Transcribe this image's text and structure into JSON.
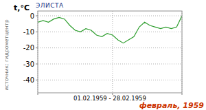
{
  "chart_data": {
    "type": "line",
    "title": "ЭЛИСТА",
    "subtitle": "февраль, 1959",
    "y_label": "t,°C",
    "x_label": "01.02.1959 - 28.02.1959",
    "source": "источник: гидрометцентр",
    "x": [
      1,
      2,
      3,
      4,
      5,
      6,
      7,
      8,
      9,
      10,
      11,
      12,
      13,
      14,
      15,
      16,
      17,
      18,
      19,
      20,
      21,
      22,
      23,
      24,
      25,
      26,
      27,
      28
    ],
    "series": [
      {
        "name": "t,°C",
        "color": "#2e9e2e",
        "values": [
          -4,
          -3,
          -4,
          -2,
          -1,
          -2,
          -6,
          -9,
          -10,
          -8,
          -9,
          -12,
          -13,
          -11,
          -12,
          -15,
          -17,
          -15,
          -13,
          -7,
          -4,
          -6,
          -7,
          -8,
          -7,
          -8,
          -7,
          0
        ]
      }
    ],
    "xlim": [
      1,
      28
    ],
    "xticks": [
      1,
      15,
      28
    ],
    "ylim": [
      -48,
      3
    ],
    "yticks": [
      -40,
      -30,
      -20,
      -10,
      0
    ],
    "grid": true,
    "tick_labels": "y"
  }
}
